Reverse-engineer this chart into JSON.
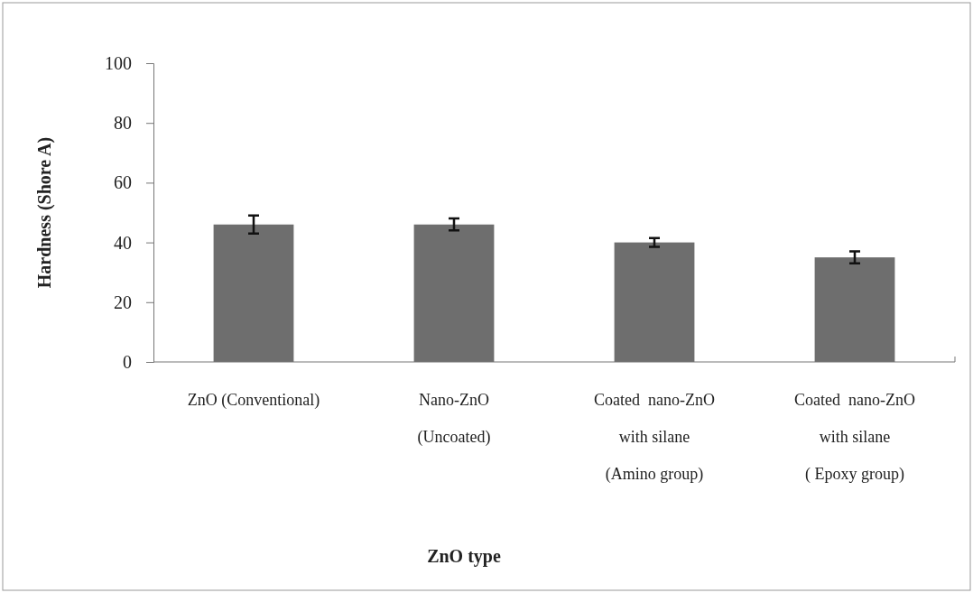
{
  "chart_data": {
    "type": "bar",
    "xlabel": "ZnO type",
    "ylabel": "Hardness (Shore A)",
    "categories": [
      "ZnO (Conventional)",
      "Nano-ZnO\n(Uncoated)",
      "Coated  nano-ZnO\nwith silane\n(Amino group)",
      "Coated  nano-ZnO\nwith silane\n( Epoxy group)"
    ],
    "values": [
      46,
      46,
      40,
      35
    ],
    "errors": [
      3,
      2,
      1.5,
      2
    ],
    "color": "#6e6e6e",
    "ylim": [
      0,
      100
    ],
    "yticks": [
      0,
      20,
      40,
      60,
      80,
      100
    ],
    "grid": false
  }
}
